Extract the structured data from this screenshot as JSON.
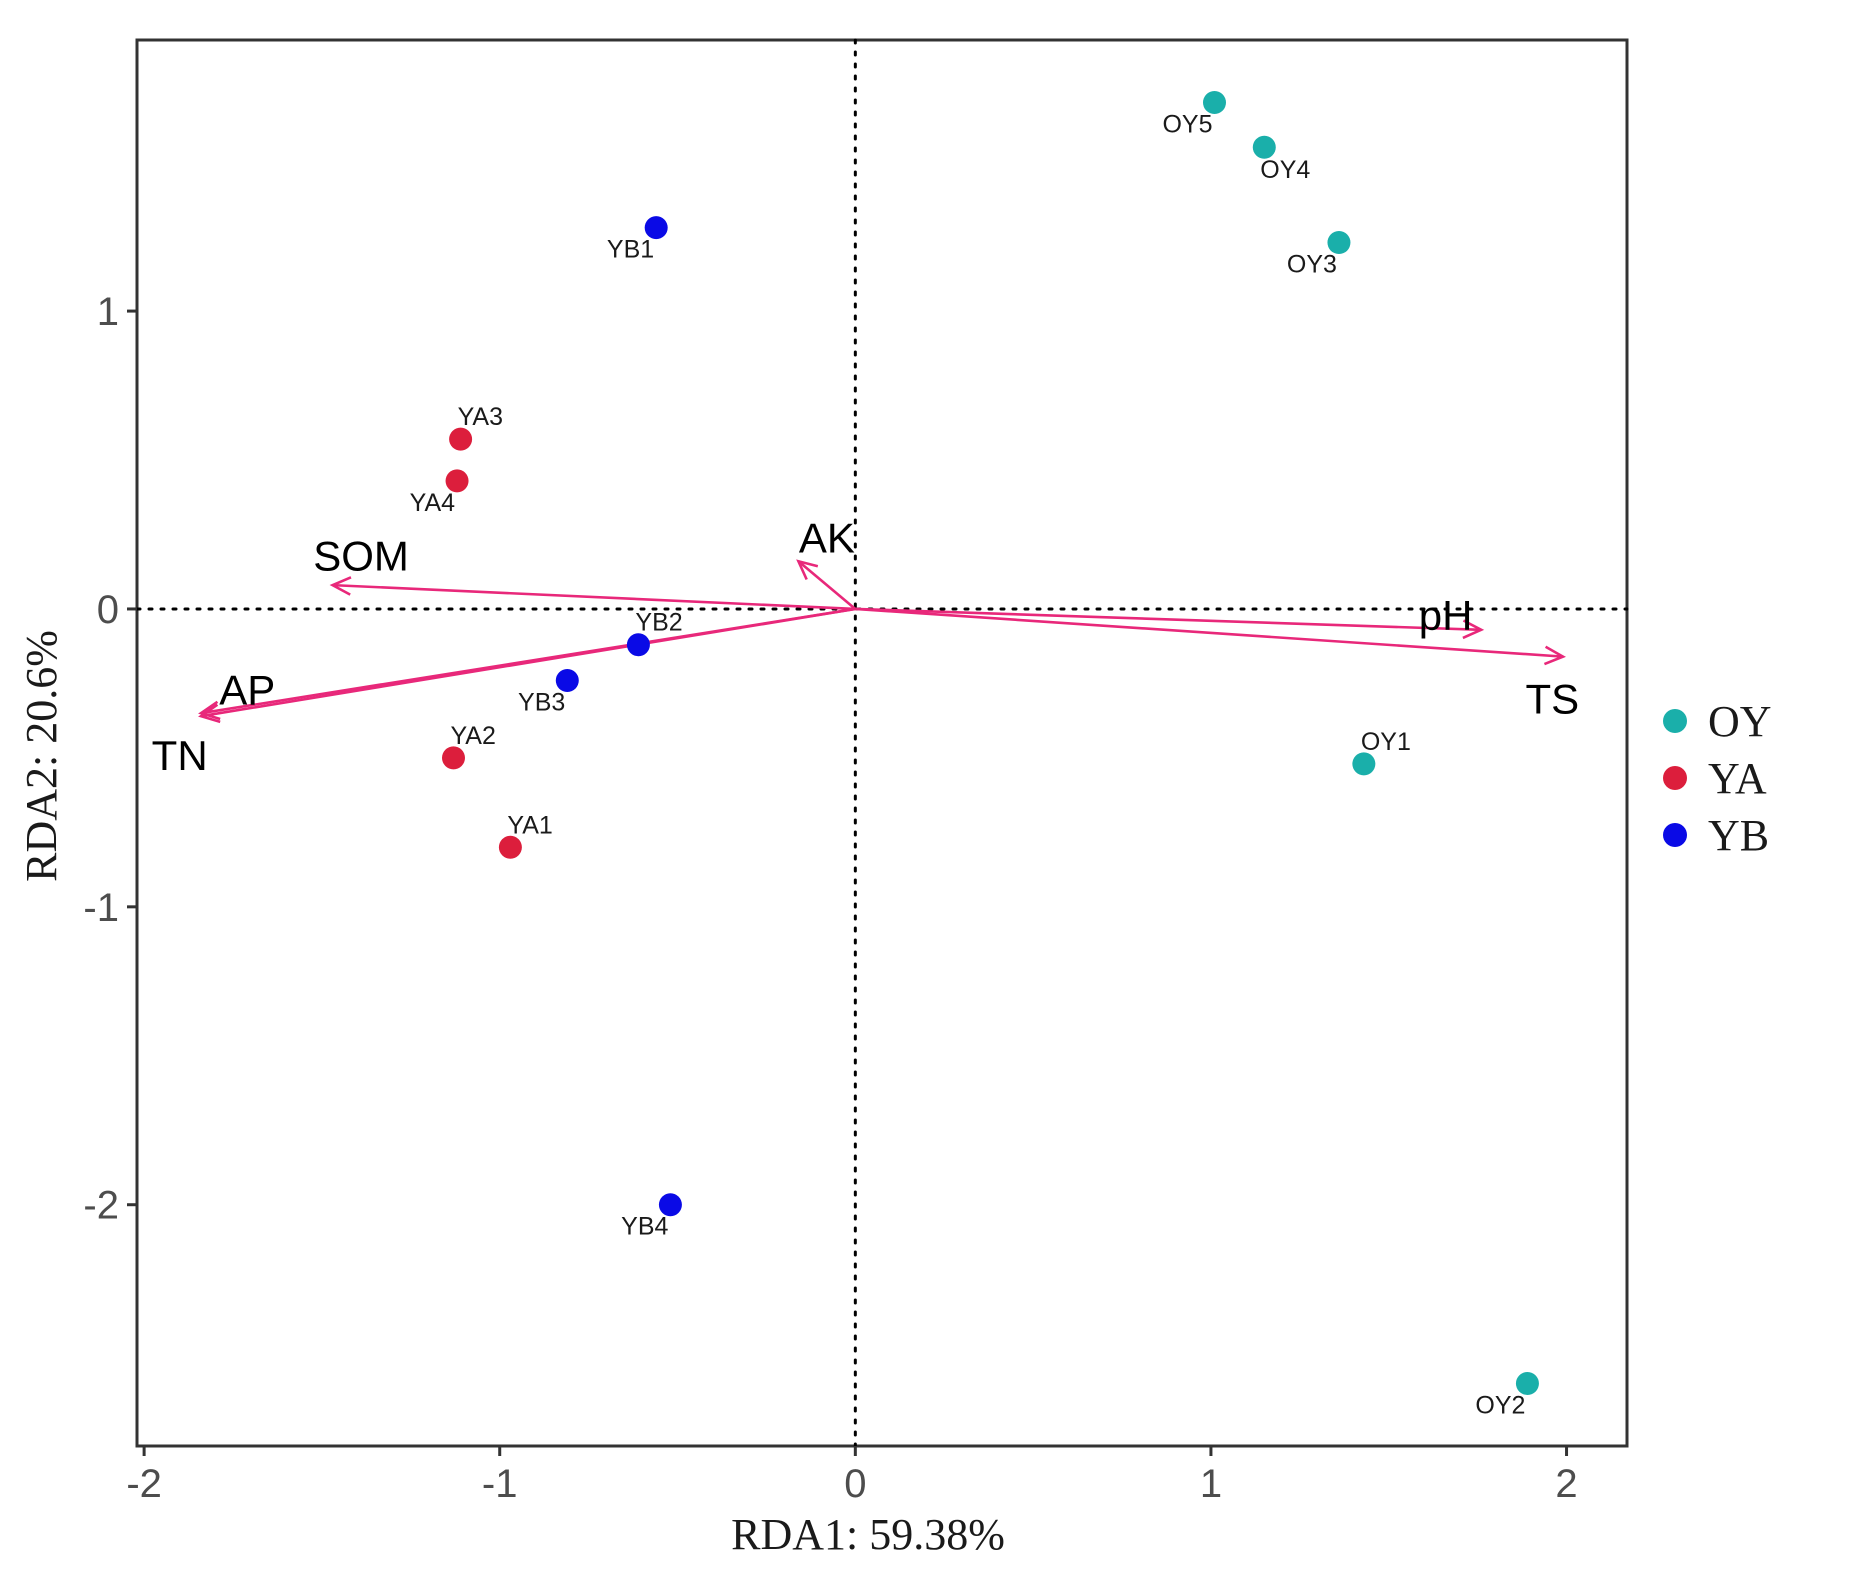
{
  "chart_data": {
    "type": "scatter",
    "subtype": "rda-biplot",
    "xlabel": "RDA1: 59.38%",
    "ylabel": "RDA2: 20.6%",
    "xlim": [
      -2.02,
      2.17
    ],
    "ylim": [
      -2.81,
      1.91
    ],
    "xticks": [
      -2,
      -1,
      0,
      1,
      2
    ],
    "yticks": [
      -2,
      -1,
      0,
      1
    ],
    "xtick_labels": [
      "-2",
      "-1",
      "0",
      "1",
      "2"
    ],
    "ytick_labels": [
      "-2",
      "-1",
      "0",
      "1"
    ],
    "reference_lines": {
      "x": 0,
      "y": 0,
      "style": "dotted"
    },
    "groups": [
      {
        "name": "OY",
        "color": "#1aafaa"
      },
      {
        "name": "YA",
        "color": "#dc1e3c"
      },
      {
        "name": "YB",
        "color": "#0a0ae6"
      }
    ],
    "points": [
      {
        "label": "OY5",
        "group": "OY",
        "x": 1.01,
        "y": 1.7,
        "label_pos": "below-left"
      },
      {
        "label": "OY4",
        "group": "OY",
        "x": 1.15,
        "y": 1.55,
        "label_pos": "below-right"
      },
      {
        "label": "OY3",
        "group": "OY",
        "x": 1.36,
        "y": 1.23,
        "label_pos": "below-left"
      },
      {
        "label": "OY1",
        "group": "OY",
        "x": 1.43,
        "y": -0.52,
        "label_pos": "above-right"
      },
      {
        "label": "OY2",
        "group": "OY",
        "x": 1.89,
        "y": -2.6,
        "label_pos": "below-left"
      },
      {
        "label": "YA3",
        "group": "YA",
        "x": -1.11,
        "y": 0.57,
        "label_pos": "above-right"
      },
      {
        "label": "YA4",
        "group": "YA",
        "x": -1.12,
        "y": 0.43,
        "label_pos": "below-left"
      },
      {
        "label": "YA2",
        "group": "YA",
        "x": -1.13,
        "y": -0.5,
        "label_pos": "above-right"
      },
      {
        "label": "YA1",
        "group": "YA",
        "x": -0.97,
        "y": -0.8,
        "label_pos": "above-right"
      },
      {
        "label": "YB1",
        "group": "YB",
        "x": -0.56,
        "y": 1.28,
        "label_pos": "below-left"
      },
      {
        "label": "YB2",
        "group": "YB",
        "x": -0.61,
        "y": -0.12,
        "label_pos": "above-right"
      },
      {
        "label": "YB3",
        "group": "YB",
        "x": -0.81,
        "y": -0.24,
        "label_pos": "below-left"
      },
      {
        "label": "YB4",
        "group": "YB",
        "x": -0.52,
        "y": -2.0,
        "label_pos": "below-left"
      }
    ],
    "arrows": {
      "color": "#e8287a",
      "items": [
        {
          "label": "SOM",
          "x": -1.47,
          "y": 0.08,
          "label_x": -1.39,
          "label_y": 0.18
        },
        {
          "label": "AK",
          "x": -0.16,
          "y": 0.16,
          "label_x": -0.08,
          "label_y": 0.24
        },
        {
          "label": "pH",
          "x": 1.76,
          "y": -0.07,
          "label_x": 1.66,
          "label_y": -0.02
        },
        {
          "label": "TS",
          "x": 1.99,
          "y": -0.16,
          "label_x": 1.96,
          "label_y": -0.3
        },
        {
          "label": "AP",
          "x": -1.84,
          "y": -0.35,
          "label_x": -1.71,
          "label_y": -0.27
        },
        {
          "label": "TN",
          "x": -1.84,
          "y": -0.36,
          "label_x": -1.9,
          "label_y": -0.49
        }
      ]
    },
    "legend": {
      "position": "right",
      "entries": [
        "OY",
        "YA",
        "YB"
      ]
    }
  }
}
